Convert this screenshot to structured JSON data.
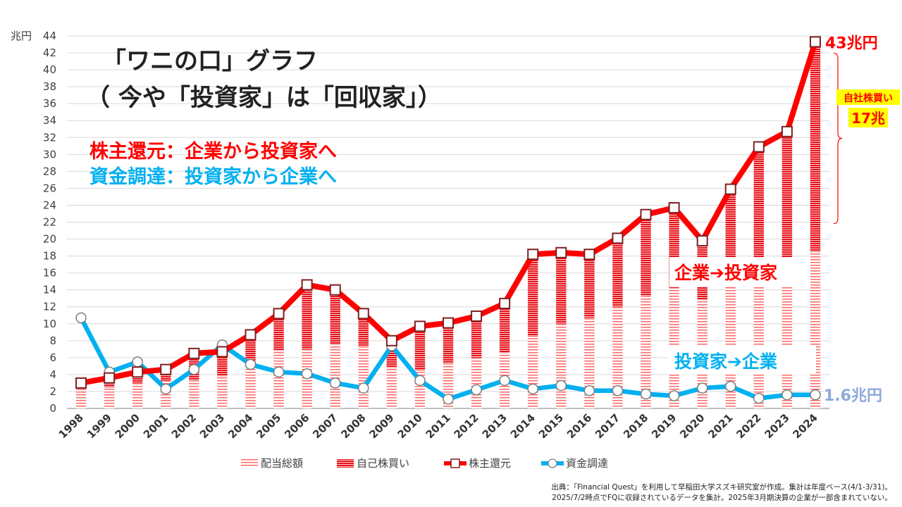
{
  "chart_data": {
    "type": "line",
    "title_lines": [
      "「ワニの口」グラフ",
      "（ 今や「投資家」は「回収家」）"
    ],
    "subtitles": [
      {
        "text": "株主還元：企業から投資家へ",
        "color": "#ff0000"
      },
      {
        "text": "資金調達：投資家から企業へ",
        "color": "#00b0f0"
      }
    ],
    "y_unit_label": "兆円",
    "ylim": [
      0,
      44
    ],
    "ytick_step": 2,
    "categories": [
      "1998",
      "1999",
      "2000",
      "2001",
      "2002",
      "2003",
      "2004",
      "2005",
      "2006",
      "2007",
      "2008",
      "2009",
      "2010",
      "2011",
      "2012",
      "2013",
      "2014",
      "2015",
      "2016",
      "2017",
      "2018",
      "2019",
      "2020",
      "2021",
      "2022",
      "2023",
      "2024"
    ],
    "series": [
      {
        "name": "配当総額",
        "kind": "stacked-bar",
        "color": "#ff6666",
        "values": [
          2.3,
          2.5,
          3.0,
          3.2,
          3.4,
          3.8,
          5.0,
          6.8,
          7.0,
          7.6,
          7.4,
          4.8,
          4.5,
          5.4,
          6.0,
          6.6,
          8.5,
          10.0,
          10.7,
          12.0,
          13.3,
          14.2,
          12.8,
          14.3,
          16.4,
          17.8,
          18.5
        ]
      },
      {
        "name": "自己株買い",
        "kind": "stacked-bar",
        "color": "#e8111a",
        "values": [
          0.7,
          1.1,
          1.3,
          1.4,
          3.1,
          2.9,
          3.7,
          4.4,
          7.6,
          6.4,
          3.8,
          3.2,
          5.2,
          4.7,
          4.9,
          5.8,
          9.7,
          8.4,
          7.5,
          8.1,
          9.6,
          9.5,
          7.0,
          11.6,
          14.5,
          14.9,
          24.8
        ]
      },
      {
        "name": "株主還元",
        "kind": "line",
        "color": "#ff0000",
        "marker": "square",
        "values": [
          3.0,
          3.6,
          4.3,
          4.6,
          6.5,
          6.7,
          8.7,
          11.2,
          14.6,
          14.0,
          11.2,
          8.0,
          9.7,
          10.1,
          10.9,
          12.4,
          18.2,
          18.4,
          18.2,
          20.1,
          22.9,
          23.7,
          19.8,
          25.9,
          30.9,
          32.7,
          43.3
        ]
      },
      {
        "name": "資金調達",
        "kind": "line",
        "color": "#00b0f0",
        "marker": "circle",
        "values": [
          10.7,
          4.3,
          5.5,
          2.3,
          4.6,
          7.5,
          5.2,
          4.3,
          4.1,
          3.0,
          2.4,
          7.4,
          3.3,
          1.1,
          2.2,
          3.3,
          2.3,
          2.7,
          2.1,
          2.1,
          1.7,
          1.5,
          2.4,
          2.6,
          1.2,
          1.6,
          1.6
        ]
      }
    ],
    "annotations": {
      "end_red": "43兆円",
      "end_blue": "1.6兆円",
      "buyback_label_1": "自社株買い",
      "buyback_label_2": "17兆",
      "callout_red": "企業➔投資家",
      "callout_blue": "投資家➔企業"
    },
    "source_lines": [
      "出典：「Financial Quest」を利用して早稲田大学スズキ研究室が作成。集計は年度ベース(4/1-3/31)。",
      "2025/7/2時点でFQに収録されているデータを集計。2025年3月期決算の企業が一部含まれていない。"
    ],
    "colors": {
      "grid": "#d9d9d9",
      "axis": "#7f7f7f",
      "buyback_label_bg": "#ffff00",
      "end_blue_text": "#8ea9db",
      "brace": "#ff0000"
    }
  }
}
